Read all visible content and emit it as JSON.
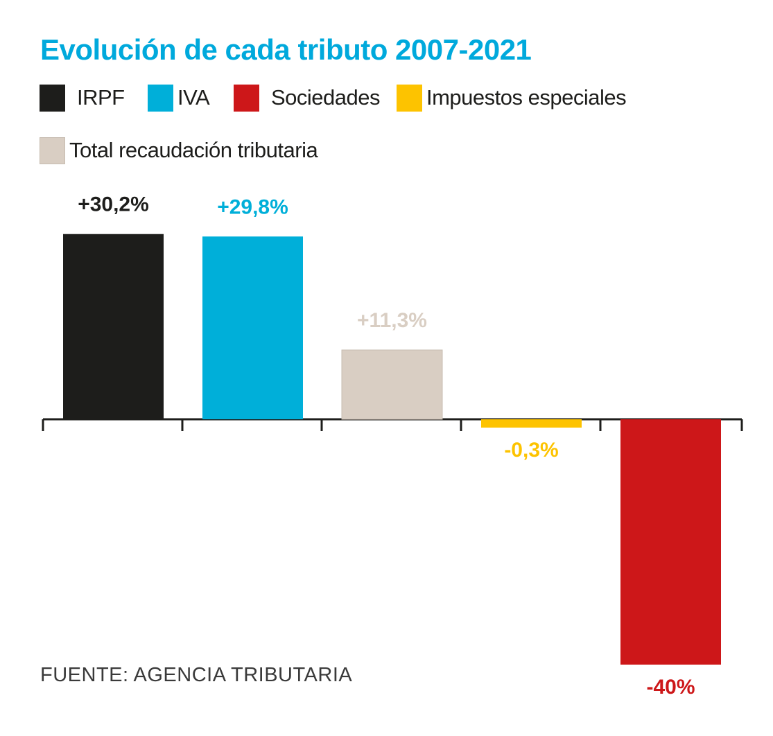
{
  "chart_data": {
    "type": "bar",
    "title": "Evolución de cada tributo 2007-2021",
    "categories": [
      "IRPF",
      "IVA",
      "Total recaudación tributaria",
      "Impuestos especiales",
      "Sociedades"
    ],
    "values": [
      30.2,
      29.8,
      11.3,
      -0.3,
      -40
    ],
    "value_labels": [
      "+30,2%",
      "+29,8%",
      "+11,3%",
      "-0,3%",
      "-40%"
    ],
    "bar_colors": [
      "#1d1d1b",
      "#00afd9",
      "#d9cec3",
      "#fdc300",
      "#cd1719"
    ],
    "label_colors": [
      "#1d1d1b",
      "#00afd9",
      "#d9cec3",
      "#fdc300",
      "#cd1719"
    ],
    "legend": [
      {
        "label": "IRPF",
        "color": "#1d1d1b"
      },
      {
        "label": "IVA",
        "color": "#00afd9"
      },
      {
        "label": "Sociedades",
        "color": "#cd1719"
      },
      {
        "label": "Impuestos especiales",
        "color": "#fdc300"
      },
      {
        "label": "Total recaudación tributaria",
        "color": "#d9cec3"
      }
    ],
    "legend_position": "top",
    "grid": false,
    "xlabel": "",
    "ylabel": "",
    "source": "FUENTE: AGENCIA TRIBUTARIA"
  },
  "colors": {
    "title": "#00a9dc",
    "axis": "#1d1d1b"
  }
}
